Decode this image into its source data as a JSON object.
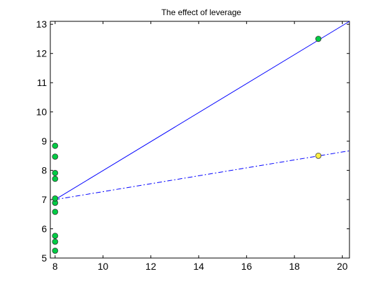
{
  "chart_data": {
    "type": "scatter",
    "title": "The effect of leverage",
    "xlabel": "",
    "ylabel": "",
    "xlim": [
      7.8,
      20.3
    ],
    "ylim": [
      5,
      13.1
    ],
    "x_ticks": [
      8,
      10,
      12,
      14,
      16,
      18,
      20
    ],
    "y_ticks": [
      5,
      6,
      7,
      8,
      9,
      10,
      11,
      12,
      13
    ],
    "grid": false,
    "legend": "none",
    "colors": {
      "point_green": "#00cc44",
      "point_yellow": "#ffee44",
      "line": "#0000ff",
      "axes": "#000000"
    },
    "series": [
      {
        "points": [
          {
            "x": 8,
            "y": 5.25
          },
          {
            "x": 8,
            "y": 5.56
          },
          {
            "x": 8,
            "y": 5.76
          },
          {
            "x": 8,
            "y": 6.58
          },
          {
            "x": 8,
            "y": 6.89
          },
          {
            "x": 8,
            "y": 7.04
          },
          {
            "x": 8,
            "y": 7.71
          },
          {
            "x": 8,
            "y": 7.91
          },
          {
            "x": 8,
            "y": 8.47
          },
          {
            "x": 8,
            "y": 8.84
          },
          {
            "x": 19,
            "y": 12.5
          }
        ],
        "marker": "circle",
        "color": "#00cc44"
      },
      {
        "points": [
          {
            "x": 19,
            "y": 8.5
          }
        ],
        "marker": "circle",
        "color": "#ffee44"
      }
    ],
    "lines": [
      {
        "style": "solid",
        "x": [
          8,
          20.3
        ],
        "y": [
          7.0,
          13.1
        ],
        "color": "#0000ff"
      },
      {
        "style": "dash-dot",
        "x": [
          8,
          20.3
        ],
        "y": [
          7.0,
          8.67
        ],
        "color": "#0000ff"
      }
    ]
  }
}
